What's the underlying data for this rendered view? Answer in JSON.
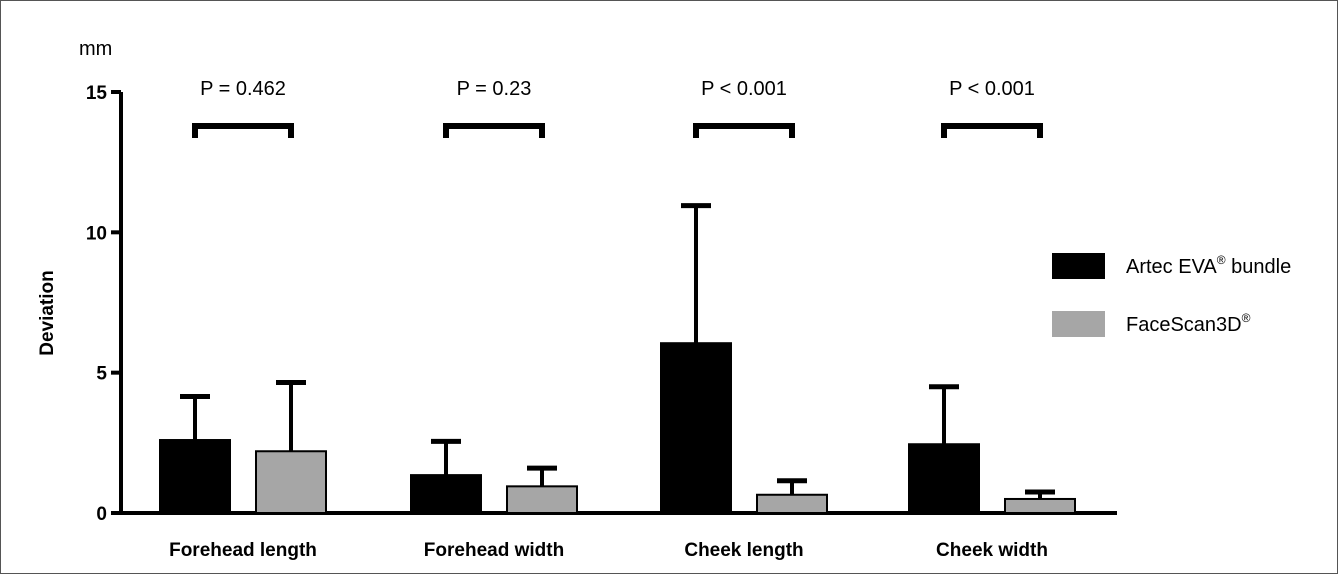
{
  "chart_data": {
    "type": "bar",
    "title": "",
    "unit_label": "mm",
    "ylabel": "Deviation",
    "xlabel": "",
    "ylim": [
      0,
      15
    ],
    "yticks": [
      "0",
      "5",
      "10",
      "15"
    ],
    "grid": false,
    "legend_placement": "right",
    "categories": [
      "Forehead length",
      "Forehead width",
      "Cheek length",
      "Cheek width"
    ],
    "series": [
      {
        "name": "Artec EVA® bundle",
        "legend_main": "Artec EVA",
        "legend_sup": "®",
        "legend_tail": " bundle",
        "color": "#000000",
        "values": [
          2.6,
          1.35,
          6.05,
          2.45
        ],
        "errors": [
          1.55,
          1.2,
          4.9,
          2.05
        ]
      },
      {
        "name": "FaceScan3D®",
        "legend_main": "FaceScan3D",
        "legend_sup": "®",
        "legend_tail": "",
        "color": "#a6a6a6",
        "values": [
          2.2,
          0.95,
          0.65,
          0.5
        ],
        "errors": [
          2.45,
          0.65,
          0.5,
          0.25
        ]
      }
    ],
    "annotations": [
      "P = 0.462",
      "P = 0.23",
      "P < 0.001",
      "P < 0.001"
    ]
  }
}
